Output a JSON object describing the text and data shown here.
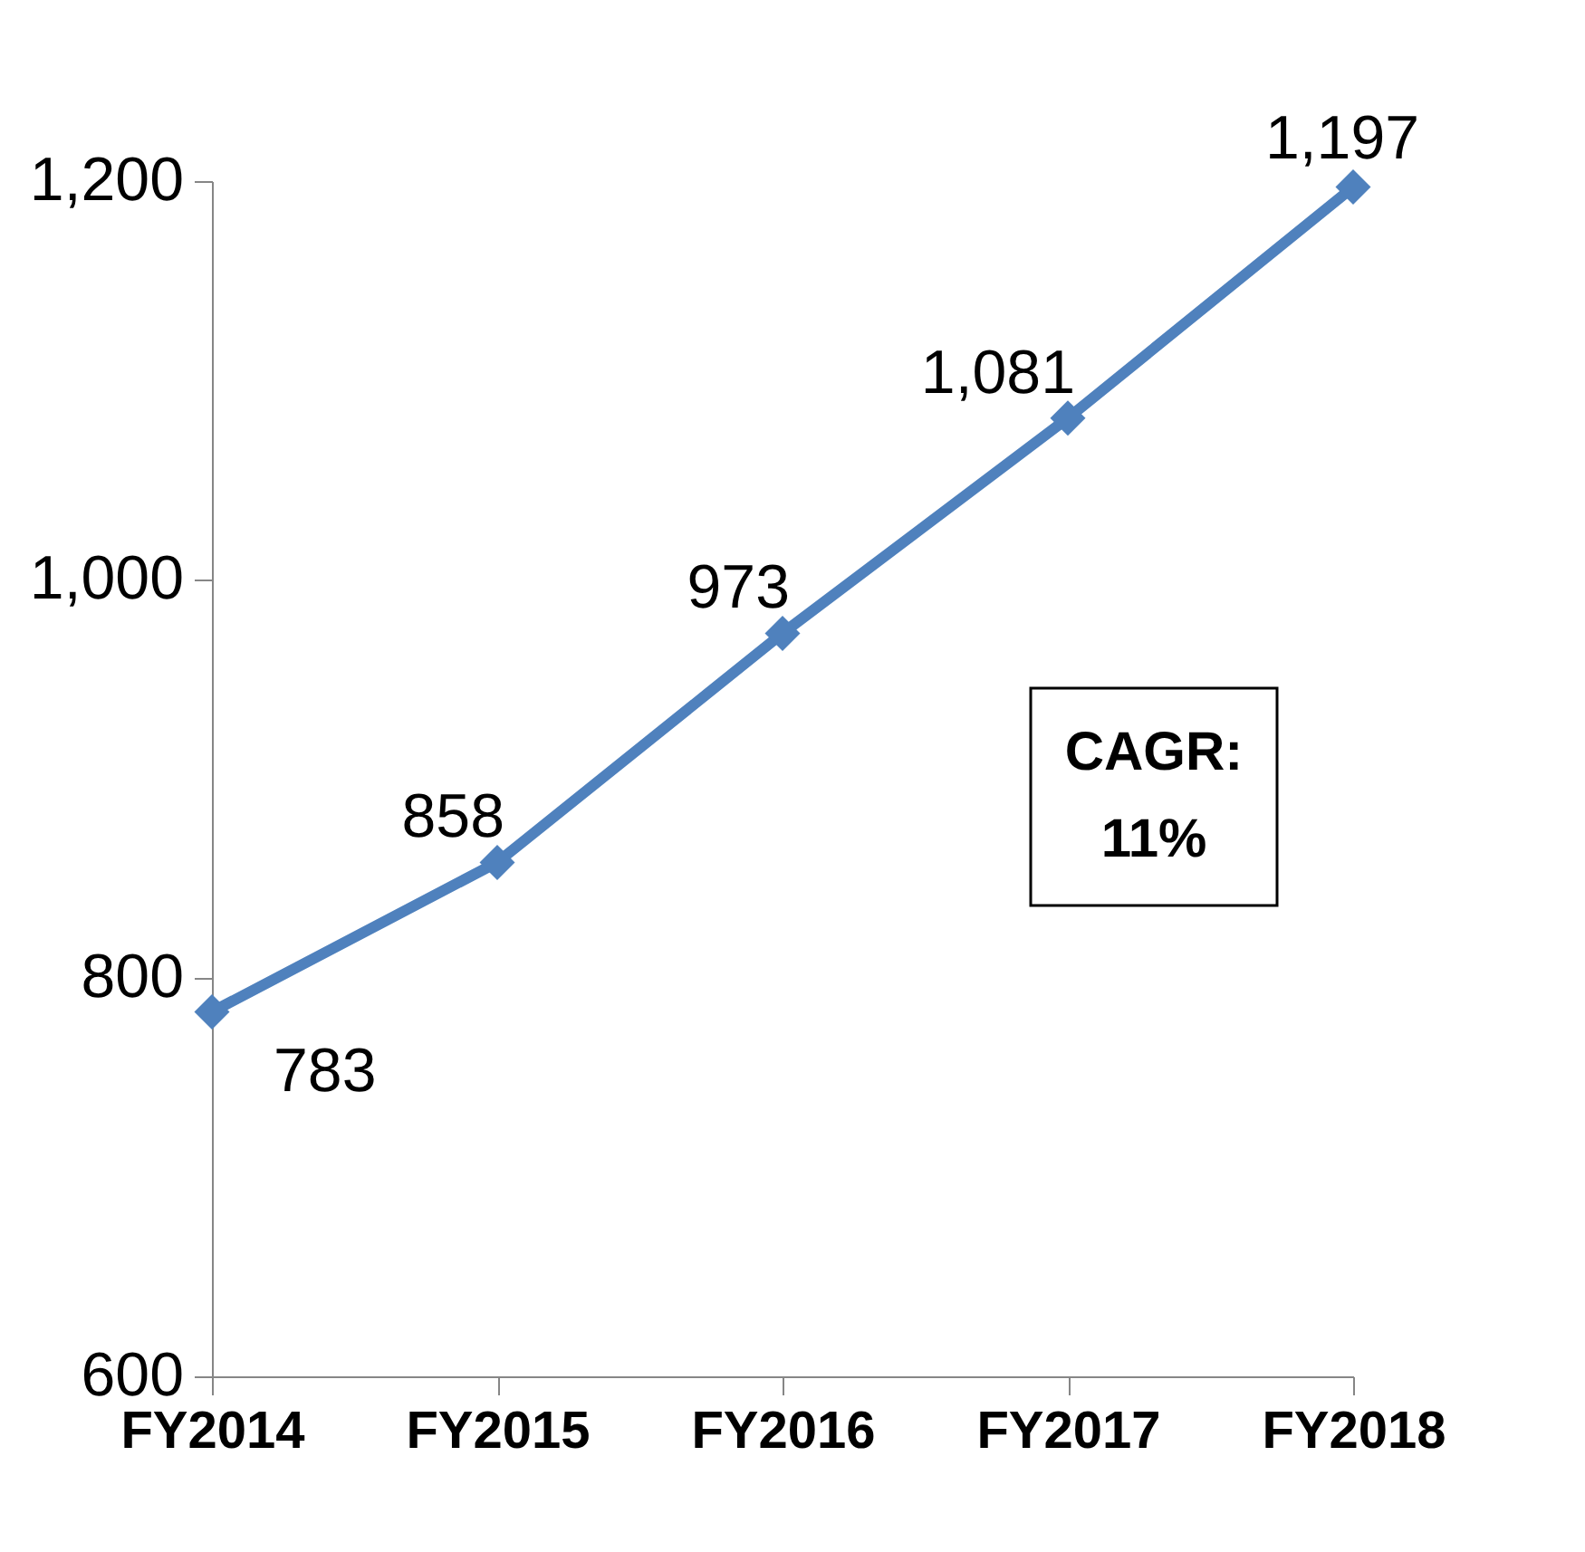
{
  "chart_data": {
    "type": "line",
    "categories": [
      "FY2014",
      "FY2015",
      "FY2016",
      "FY2017",
      "FY2018"
    ],
    "series": [
      {
        "color": "#4f81bd",
        "values": [
          783,
          858,
          973,
          1081,
          1197
        ]
      }
    ],
    "ylim": [
      600,
      1200
    ],
    "yticks": [
      {
        "value": 600,
        "label": "600"
      },
      {
        "value": 800,
        "label": "800"
      },
      {
        "value": 1000,
        "label": "1,000"
      },
      {
        "value": 1200,
        "label": "1,200"
      }
    ],
    "value_labels": [
      "783",
      "858",
      "973",
      "1,081",
      "1,197"
    ],
    "marker": "diamond",
    "line_style": "solid",
    "grid": false,
    "annotations": [
      "CAGR:\n11%"
    ]
  }
}
